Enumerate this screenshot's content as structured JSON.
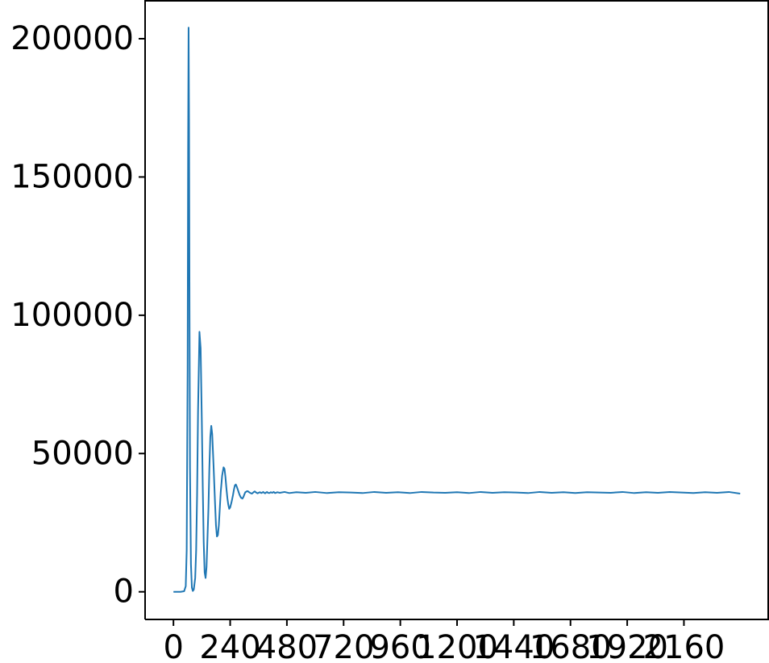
{
  "chart_data": {
    "type": "line",
    "title": "",
    "xlabel": "",
    "ylabel": "",
    "xlim": [
      -120,
      2520
    ],
    "ylim": [
      -10000,
      214000
    ],
    "grid": false,
    "legend": "none",
    "x_ticks": [
      0,
      240,
      480,
      720,
      960,
      1200,
      1440,
      1680,
      1920,
      2160
    ],
    "x_tick_labels": [
      "0",
      "240",
      "480",
      "720",
      "960",
      "1200",
      "1440",
      "1680",
      "1920",
      "2160"
    ],
    "y_ticks": [
      0,
      50000,
      100000,
      150000,
      200000
    ],
    "y_tick_labels": [
      "0",
      "50000",
      "100000",
      "150000",
      "200000"
    ],
    "series": [
      {
        "color": "#1f77b4",
        "x": [
          0,
          30,
          45,
          52,
          56,
          60,
          62,
          64,
          66,
          68,
          70,
          74,
          78,
          82,
          86,
          92,
          96,
          100,
          104,
          110,
          115,
          120,
          124,
          128,
          132,
          136,
          140,
          148,
          152,
          156,
          160,
          164,
          170,
          176,
          180,
          184,
          188,
          192,
          196,
          200,
          206,
          212,
          216,
          220,
          224,
          228,
          232,
          236,
          240,
          246,
          252,
          256,
          260,
          264,
          268,
          272,
          276,
          280,
          286,
          292,
          296,
          300,
          304,
          308,
          312,
          316,
          320,
          326,
          332,
          336,
          340,
          344,
          348,
          352,
          356,
          360,
          366,
          372,
          376,
          380,
          384,
          388,
          392,
          396,
          400,
          406,
          412,
          418,
          424,
          430,
          436,
          440,
          450,
          470,
          490,
          520,
          560,
          600,
          650,
          700,
          750,
          800,
          850,
          900,
          950,
          1000,
          1050,
          1100,
          1150,
          1200,
          1250,
          1300,
          1350,
          1400,
          1450,
          1500,
          1550,
          1600,
          1650,
          1700,
          1750,
          1800,
          1850,
          1900,
          1950,
          2000,
          2050,
          2100,
          2150,
          2200,
          2250,
          2300,
          2350,
          2398
        ],
        "y": [
          0,
          0,
          200,
          2000,
          15000,
          80000,
          160000,
          204000,
          170000,
          100000,
          45000,
          10000,
          1500,
          300,
          800,
          5000,
          15000,
          35000,
          65000,
          94000,
          88000,
          62000,
          38000,
          18000,
          7000,
          5000,
          9000,
          30000,
          45000,
          56000,
          60000,
          57000,
          45000,
          32000,
          24000,
          20000,
          20500,
          24000,
          30000,
          36000,
          42000,
          45000,
          44500,
          41500,
          37500,
          34000,
          31500,
          30000,
          30500,
          32500,
          35000,
          37000,
          38500,
          38800,
          38000,
          37000,
          36000,
          35000,
          34000,
          33700,
          34300,
          35200,
          36000,
          36200,
          36400,
          36300,
          36000,
          35700,
          35500,
          35800,
          36100,
          36300,
          36000,
          35800,
          35600,
          35800,
          36000,
          35700,
          35900,
          36100,
          35800,
          35600,
          35900,
          36100,
          35800,
          35700,
          36000,
          35800,
          36100,
          35700,
          35900,
          36000,
          35800,
          36100,
          35700,
          36000,
          35800,
          36100,
          35700,
          36000,
          35900,
          35700,
          36100,
          35800,
          36000,
          35700,
          36100,
          35900,
          35800,
          36000,
          35700,
          36100,
          35800,
          36000,
          35900,
          35700,
          36100,
          35800,
          36000,
          35700,
          36000,
          35900,
          35800,
          36100,
          35700,
          36000,
          35800,
          36100,
          35900,
          35700,
          36000,
          35800,
          36100,
          35500
        ]
      }
    ]
  }
}
